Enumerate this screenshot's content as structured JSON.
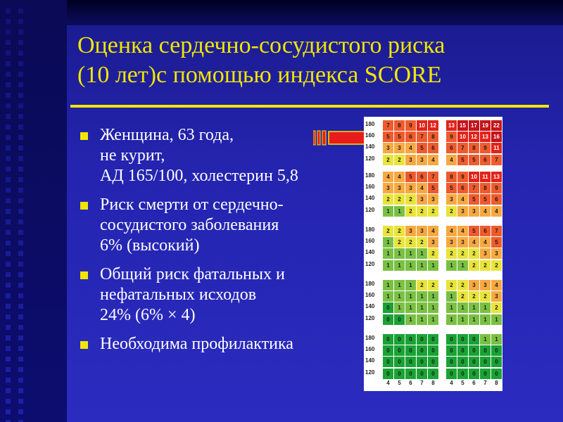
{
  "slide": {
    "title_lines": [
      "Оценка сердечно-сосудистого риска",
      "(10 лет)с помощью индекса SCORE"
    ],
    "bullets": [
      {
        "lines": [
          "Женщина, 63 года,",
          "не курит,",
          "АД 165/100, холестерин 5,8"
        ]
      },
      {
        "lines": [
          "Риск смерти от сердечно-",
          "сосудистого заболевания",
          "6% (высокий)"
        ]
      },
      {
        "lines": [
          "Общий риск фатальных и",
          "нефатальных исходов",
          "24% (6% × 4)"
        ]
      },
      {
        "lines": [
          "Необходима профилактика"
        ]
      }
    ],
    "colors": {
      "title": "#f2e600",
      "text": "#ffffff",
      "arrow": "#e81c1c"
    }
  },
  "score_chart": {
    "sbp_labels": [
      "180",
      "160",
      "140",
      "120"
    ],
    "chol_labels": [
      "4",
      "5",
      "6",
      "7",
      "8"
    ],
    "panels": [
      {
        "row": 0,
        "left": [
          [
            7,
            8,
            9,
            10,
            12
          ],
          [
            5,
            5,
            6,
            7,
            8
          ],
          [
            3,
            3,
            4,
            5,
            6
          ],
          [
            2,
            2,
            3,
            3,
            4
          ]
        ],
        "right": [
          [
            13,
            15,
            17,
            19,
            22
          ],
          [
            9,
            10,
            12,
            13,
            16
          ],
          [
            6,
            7,
            8,
            9,
            11
          ],
          [
            4,
            5,
            5,
            6,
            7
          ]
        ]
      },
      {
        "row": 1,
        "left": [
          [
            4,
            4,
            5,
            6,
            7
          ],
          [
            3,
            3,
            3,
            4,
            5
          ],
          [
            2,
            2,
            2,
            3,
            3
          ],
          [
            1,
            1,
            2,
            2,
            2
          ]
        ],
        "right": [
          [
            8,
            9,
            10,
            11,
            13
          ],
          [
            5,
            6,
            7,
            8,
            9
          ],
          [
            3,
            4,
            5,
            5,
            6
          ],
          [
            2,
            3,
            3,
            4,
            4
          ]
        ]
      },
      {
        "row": 2,
        "left": [
          [
            2,
            2,
            3,
            3,
            4
          ],
          [
            1,
            2,
            2,
            2,
            3
          ],
          [
            1,
            1,
            1,
            1,
            2
          ],
          [
            1,
            1,
            1,
            1,
            1
          ]
        ],
        "right": [
          [
            4,
            4,
            5,
            6,
            7
          ],
          [
            3,
            3,
            4,
            4,
            5
          ],
          [
            2,
            2,
            2,
            3,
            3
          ],
          [
            1,
            1,
            2,
            2,
            2
          ]
        ]
      },
      {
        "row": 3,
        "left": [
          [
            1,
            1,
            1,
            2,
            2
          ],
          [
            1,
            1,
            1,
            1,
            1
          ],
          [
            0,
            1,
            1,
            1,
            1
          ],
          [
            0,
            0,
            1,
            1,
            1
          ]
        ],
        "right": [
          [
            2,
            2,
            3,
            3,
            4
          ],
          [
            1,
            2,
            2,
            2,
            3
          ],
          [
            1,
            1,
            1,
            1,
            2
          ],
          [
            1,
            1,
            1,
            1,
            1
          ]
        ]
      },
      {
        "row": 4,
        "left": [
          [
            0,
            0,
            0,
            0,
            0
          ],
          [
            0,
            0,
            0,
            0,
            0
          ],
          [
            0,
            0,
            0,
            0,
            0
          ],
          [
            0,
            0,
            0,
            0,
            0
          ]
        ],
        "right": [
          [
            0,
            0,
            0,
            1,
            1
          ],
          [
            0,
            0,
            0,
            0,
            0
          ],
          [
            0,
            0,
            0,
            0,
            0
          ],
          [
            0,
            0,
            0,
            0,
            0
          ]
        ]
      }
    ],
    "risk_colors": {
      "0": "#1aa335",
      "1": "#7ac143",
      "2": "#e8e43a",
      "3-4": "#f7a941",
      "5-9": "#ef5b2e",
      "10-14": "#e2231a",
      "15+": "#c4131a"
    }
  }
}
